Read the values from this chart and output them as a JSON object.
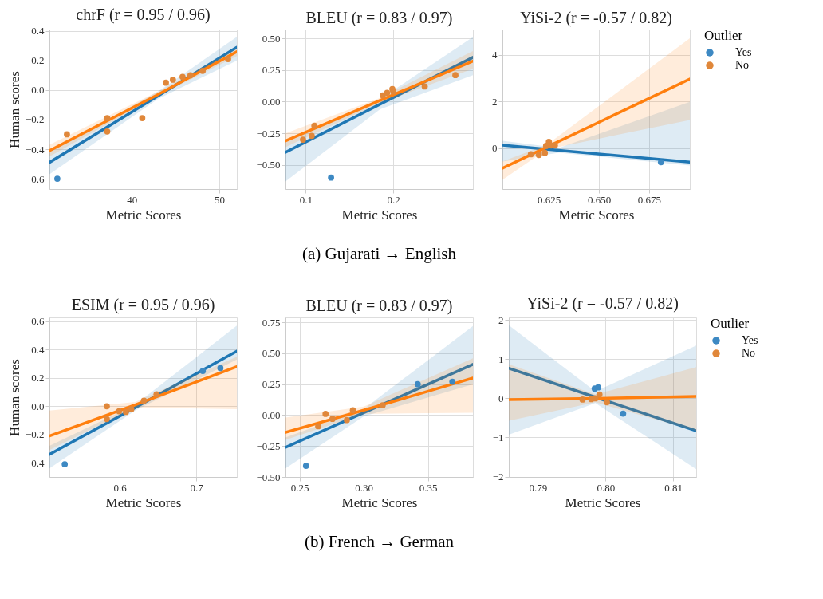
{
  "chart_data": [
    {
      "type": "scatter",
      "title": "chrF (r = 0.95 / 0.96)",
      "xlabel": "Metric Scores",
      "ylabel": "Human scores",
      "marker": "circle",
      "grid": true,
      "xlim": [
        30.6,
        52.0
      ],
      "xticks": [
        40,
        50
      ],
      "ylim": [
        -0.67,
        0.41
      ],
      "yticks": [
        {
          "value": -0.6,
          "label": "−0.6"
        },
        {
          "value": -0.4,
          "label": "−0.4"
        },
        {
          "value": -0.2,
          "label": "−0.2"
        },
        {
          "value": 0,
          "label": "0.0"
        },
        0.2,
        0.4
      ],
      "series": [
        {
          "color": "#3d89c3",
          "x": [
            31.5
          ],
          "values": [
            -0.6
          ]
        },
        {
          "color": "#e0873a",
          "x": [
            32.6,
            37.2,
            37.2,
            41.2,
            43.9,
            44.7,
            45.8,
            46.7,
            48.1,
            51.0
          ],
          "values": [
            -0.3,
            -0.19,
            -0.28,
            -0.19,
            0.05,
            0.07,
            0.09,
            0.1,
            0.13,
            0.21
          ]
        },
        {
          "type": "line",
          "marker": "none",
          "color": "#1f77b4",
          "x": [
            30.6,
            43,
            52.0
          ],
          "values": [
            -0.49,
            -0.04,
            0.29
          ],
          "lower": [
            -0.57,
            -0.06,
            0.2
          ],
          "upper": [
            -0.42,
            -0.01,
            0.36
          ]
        },
        {
          "type": "line",
          "marker": "none",
          "color": "#ff7f0e",
          "x": [
            30.6,
            43,
            52.0
          ],
          "values": [
            -0.41,
            -0.03,
            0.26
          ],
          "lower": [
            -0.45,
            -0.04,
            0.23
          ],
          "upper": [
            -0.37,
            -0.01,
            0.28
          ]
        }
      ]
    },
    {
      "type": "scatter",
      "title": "BLEU (r = 0.83 / 0.97)",
      "xlabel": "Metric Scores",
      "marker": "circle",
      "grid": true,
      "annotations": [
        "(a) Gujarati → English"
      ],
      "xlim": [
        0.077,
        0.291
      ],
      "xticks": [
        0.1,
        0.2
      ],
      "ylim": [
        -0.69,
        0.57
      ],
      "yticks": [
        {
          "value": -0.5,
          "label": "−0.50"
        },
        {
          "value": -0.25,
          "label": "−0.25"
        },
        {
          "value": 0,
          "label": "0.00"
        },
        0.25,
        {
          "value": 0.5,
          "label": "0.50"
        }
      ],
      "series": [
        {
          "color": "#3d89c3",
          "x": [
            0.129
          ],
          "values": [
            -0.6
          ]
        },
        {
          "color": "#e0873a",
          "x": [
            0.097,
            0.107,
            0.11,
            0.188,
            0.193,
            0.199,
            0.2,
            0.236,
            0.271
          ],
          "values": [
            -0.3,
            -0.27,
            -0.19,
            0.05,
            0.07,
            0.1,
            0.08,
            0.12,
            0.21
          ]
        },
        {
          "type": "line",
          "marker": "none",
          "color": "#1f77b4",
          "x": [
            0.077,
            0.185,
            0.291
          ],
          "values": [
            -0.4,
            -0.02,
            0.35
          ],
          "lower": [
            -0.63,
            -0.06,
            0.21
          ],
          "upper": [
            -0.32,
            0.02,
            0.51
          ]
        },
        {
          "type": "line",
          "marker": "none",
          "color": "#ff7f0e",
          "x": [
            0.077,
            0.185,
            0.291
          ],
          "values": [
            -0.31,
            0.01,
            0.32
          ],
          "lower": [
            -0.36,
            -0.01,
            0.26
          ],
          "upper": [
            -0.25,
            0.03,
            0.4
          ]
        }
      ]
    },
    {
      "type": "scatter",
      "title": "YiSi-2 (r = -0.57 / 0.82)",
      "xlabel": "Metric Scores",
      "marker": "circle",
      "grid": true,
      "legend": "right",
      "legend_title": "Outlier",
      "xlim": [
        0.6018,
        0.6954
      ],
      "xticks": [
        0.625,
        {
          "value": 0.65,
          "label": "0.650"
        },
        0.675
      ],
      "ylim": [
        -1.76,
        5.08
      ],
      "yticks": [
        0,
        2,
        4
      ],
      "series": [
        {
          "name": "Yes",
          "color": "#3d89c3",
          "x": [
            0.681
          ],
          "values": [
            -0.61
          ]
        },
        {
          "name": "No",
          "color": "#e0873a",
          "x": [
            0.616,
            0.62,
            0.623,
            0.6236,
            0.625,
            0.6262,
            0.628
          ],
          "values": [
            -0.27,
            -0.3,
            -0.21,
            0.09,
            0.26,
            0.11,
            0.11
          ]
        },
        {
          "type": "line",
          "marker": "none",
          "color": "#1f77b4",
          "x": [
            0.6018,
            0.63,
            0.6954
          ],
          "values": [
            0.12,
            -0.1,
            -0.61
          ],
          "lower": [
            -0.58,
            -0.2,
            -0.75
          ],
          "upper": [
            0.31,
            0.0,
            1.98
          ]
        },
        {
          "type": "line",
          "marker": "none",
          "color": "#ff7f0e",
          "x": [
            0.6018,
            0.624,
            0.6954
          ],
          "values": [
            -0.87,
            0.04,
            2.96
          ],
          "lower": [
            -1.37,
            -0.06,
            1.2
          ],
          "upper": [
            -0.58,
            0.14,
            4.7
          ]
        }
      ]
    },
    {
      "type": "scatter",
      "title": "ESIM (r = 0.95 / 0.96)",
      "xlabel": "Metric Scores",
      "ylabel": "Human scores",
      "marker": "circle",
      "grid": true,
      "xlim": [
        0.508,
        0.753
      ],
      "xticks": [
        0.6,
        0.7
      ],
      "ylim": [
        -0.5,
        0.628
      ],
      "yticks": [
        {
          "value": -0.4,
          "label": "−0.4"
        },
        {
          "value": -0.2,
          "label": "−0.2"
        },
        {
          "value": 0,
          "label": "0.0"
        },
        0.2,
        0.4,
        0.6
      ],
      "series": [
        {
          "color": "#3d89c3",
          "x": [
            0.528,
            0.7085,
            0.7315
          ],
          "values": [
            -0.41,
            0.25,
            0.27
          ]
        },
        {
          "color": "#e0873a",
          "x": [
            0.583,
            0.583,
            0.599,
            0.608,
            0.615,
            0.6315,
            0.648
          ],
          "values": [
            0.0,
            -0.09,
            -0.035,
            -0.04,
            -0.02,
            0.04,
            0.085
          ]
        },
        {
          "type": "line",
          "marker": "none",
          "color": "#1f77b4",
          "x": [
            0.508,
            0.62,
            0.753
          ],
          "values": [
            -0.34,
            -0.01,
            0.39
          ],
          "lower": [
            -0.44,
            -0.03,
            0.33
          ],
          "upper": [
            -0.28,
            0.01,
            0.57
          ]
        },
        {
          "type": "line",
          "marker": "none",
          "color": "#ff7f0e",
          "x": [
            0.508,
            0.62,
            0.753
          ],
          "values": [
            -0.21,
            0.01,
            0.28
          ],
          "lower": [
            -0.31,
            -0.01,
            -0.02
          ],
          "upper": [
            -0.03,
            0.03,
            0.35
          ]
        }
      ]
    },
    {
      "type": "scatter",
      "title": "BLEU (r = 0.83 / 0.97)",
      "xlabel": "Metric Scores",
      "marker": "circle",
      "grid": true,
      "annotations": [
        "(b) French → German"
      ],
      "xlim": [
        0.239,
        0.385
      ],
      "xticks": [
        0.25,
        {
          "value": 0.3,
          "label": "0.30"
        },
        0.35
      ],
      "ylim": [
        -0.5,
        0.79
      ],
      "yticks": [
        {
          "value": -0.5,
          "label": "−0.50"
        },
        {
          "value": -0.25,
          "label": "−0.25"
        },
        {
          "value": 0,
          "label": "0.00"
        },
        0.25,
        {
          "value": 0.5,
          "label": "0.50"
        },
        0.75
      ],
      "series": [
        {
          "color": "#3d89c3",
          "x": [
            0.255,
            0.342,
            0.369
          ],
          "values": [
            -0.41,
            0.25,
            0.27
          ]
        },
        {
          "color": "#e0873a",
          "x": [
            0.2645,
            0.2702,
            0.2756,
            0.2868,
            0.2915,
            0.3147
          ],
          "values": [
            -0.09,
            0.01,
            -0.03,
            -0.04,
            0.04,
            0.08
          ]
        },
        {
          "type": "line",
          "marker": "none",
          "color": "#1f77b4",
          "x": [
            0.239,
            0.3,
            0.385
          ],
          "values": [
            -0.26,
            0.02,
            0.41
          ],
          "lower": [
            -0.43,
            -0.01,
            0.25
          ],
          "upper": [
            -0.18,
            0.05,
            0.72
          ]
        },
        {
          "type": "line",
          "marker": "none",
          "color": "#ff7f0e",
          "x": [
            0.239,
            0.3,
            0.385
          ],
          "values": [
            -0.14,
            0.04,
            0.3
          ],
          "lower": [
            -0.2,
            0.01,
            0.02
          ],
          "upper": [
            -0.02,
            0.07,
            0.46
          ]
        }
      ]
    },
    {
      "type": "scatter",
      "title": "YiSi-2 (r = -0.57 / 0.82)",
      "xlabel": "Metric Scores",
      "marker": "circle",
      "grid": true,
      "legend": "right",
      "legend_title": "Outlier",
      "xlim": [
        0.7857,
        0.8134
      ],
      "xticks": [
        0.79,
        {
          "value": 0.8,
          "label": "0.80"
        },
        0.81
      ],
      "ylim": [
        -2.01,
        2.07
      ],
      "yticks": [
        {
          "value": -2,
          "label": "−2"
        },
        {
          "value": -1,
          "label": "−1"
        },
        0,
        1,
        2
      ],
      "series": [
        {
          "name": "Yes",
          "color": "#3d89c3",
          "x": [
            0.7984,
            0.7989,
            0.8026
          ],
          "values": [
            0.25,
            0.28,
            -0.39
          ]
        },
        {
          "name": "No",
          "color": "#e0873a",
          "x": [
            0.7966,
            0.7979,
            0.7985,
            0.7991,
            0.8002
          ],
          "values": [
            -0.03,
            -0.02,
            0.0,
            0.1,
            -0.1
          ]
        },
        {
          "type": "line",
          "marker": "none",
          "color": "#1f77b4",
          "x": [
            0.7857,
            0.7985,
            0.8134
          ],
          "values": [
            0.77,
            0.03,
            -0.83
          ],
          "lower": [
            -0.93,
            -0.12,
            -1.81
          ],
          "upper": [
            1.87,
            0.18,
            1.35
          ]
        },
        {
          "type": "line",
          "marker": "none",
          "color": "#ff7f0e",
          "x": [
            0.7857,
            0.7985,
            0.8134
          ],
          "values": [
            -0.03,
            0.0,
            0.05
          ],
          "lower": [
            -0.57,
            -0.1,
            -0.83
          ],
          "upper": [
            0.87,
            0.1,
            0.8
          ]
        }
      ]
    }
  ]
}
